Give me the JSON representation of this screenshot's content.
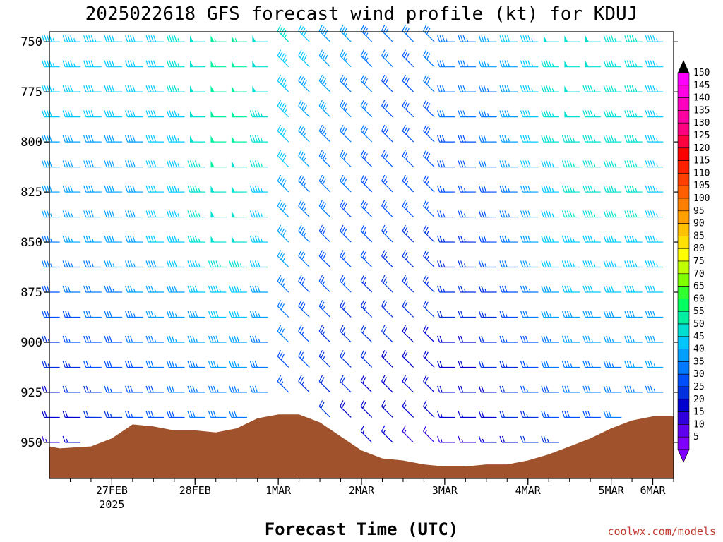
{
  "title": "2025022618 GFS forecast wind profile (kt) for KDUJ",
  "xlabel": "Forecast Time (UTC)",
  "credit": "coolwx.com/models",
  "chart_data": {
    "type": "wind_barbs",
    "y_axis": {
      "label": "",
      "ticks": [
        750,
        775,
        800,
        825,
        850,
        875,
        900,
        925,
        950
      ],
      "range": [
        745,
        968
      ],
      "inverted": true
    },
    "x_axis": {
      "start": "2025-02-26T18:00Z",
      "end": "2025-03-06T06:00Z",
      "ticks": [
        {
          "label": "27FEB",
          "label2": "2025"
        },
        {
          "label": "28FEB",
          "label2": ""
        },
        {
          "label": "1MAR",
          "label2": ""
        },
        {
          "label": "2MAR",
          "label2": ""
        },
        {
          "label": "3MAR",
          "label2": ""
        },
        {
          "label": "4MAR",
          "label2": ""
        },
        {
          "label": "5MAR",
          "label2": ""
        },
        {
          "label": "6MAR",
          "label2": ""
        }
      ]
    },
    "colorbar": {
      "levels": [
        5,
        10,
        15,
        20,
        25,
        30,
        35,
        40,
        45,
        50,
        55,
        60,
        65,
        70,
        75,
        80,
        85,
        90,
        95,
        100,
        105,
        110,
        115,
        120,
        125,
        130,
        135,
        140,
        145,
        150
      ],
      "colors": [
        "#8000ff",
        "#6000f0",
        "#3000e0",
        "#0000d0",
        "#0030e0",
        "#0050ff",
        "#0078ff",
        "#00a0ff",
        "#00c8ff",
        "#00e0d0",
        "#00f0a0",
        "#00ff60",
        "#30ff30",
        "#80ff00",
        "#c0ff00",
        "#ffff00",
        "#ffe000",
        "#ffc000",
        "#ffa000",
        "#ff8000",
        "#ff6000",
        "#ff4000",
        "#ff2000",
        "#ff0000",
        "#ff0040",
        "#ff0080",
        "#ff00a0",
        "#ff00c0",
        "#ff00e0",
        "#ff00ff"
      ]
    },
    "terrain_color": "#a0522d",
    "terrain_surface_pressure": [
      {
        "t": "2025-02-26T18:00Z",
        "p": 952
      },
      {
        "t": "2025-02-26T21:00Z",
        "p": 953
      },
      {
        "t": "2025-02-27T06:00Z",
        "p": 952
      },
      {
        "t": "2025-02-27T12:00Z",
        "p": 948
      },
      {
        "t": "2025-02-27T18:00Z",
        "p": 941
      },
      {
        "t": "2025-02-28T00:00Z",
        "p": 942
      },
      {
        "t": "2025-02-28T06:00Z",
        "p": 944
      },
      {
        "t": "2025-02-28T12:00Z",
        "p": 944
      },
      {
        "t": "2025-02-28T18:00Z",
        "p": 945
      },
      {
        "t": "2025-03-01T00:00Z",
        "p": 943
      },
      {
        "t": "2025-03-01T06:00Z",
        "p": 938
      },
      {
        "t": "2025-03-01T12:00Z",
        "p": 936
      },
      {
        "t": "2025-03-01T18:00Z",
        "p": 936
      },
      {
        "t": "2025-03-02T00:00Z",
        "p": 940
      },
      {
        "t": "2025-03-02T06:00Z",
        "p": 947
      },
      {
        "t": "2025-03-02T12:00Z",
        "p": 954
      },
      {
        "t": "2025-03-02T18:00Z",
        "p": 958
      },
      {
        "t": "2025-03-03T00:00Z",
        "p": 959
      },
      {
        "t": "2025-03-03T06:00Z",
        "p": 961
      },
      {
        "t": "2025-03-03T12:00Z",
        "p": 962
      },
      {
        "t": "2025-03-03T18:00Z",
        "p": 962
      },
      {
        "t": "2025-03-04T00:00Z",
        "p": 961
      },
      {
        "t": "2025-03-04T06:00Z",
        "p": 961
      },
      {
        "t": "2025-03-04T12:00Z",
        "p": 959
      },
      {
        "t": "2025-03-04T18:00Z",
        "p": 956
      },
      {
        "t": "2025-03-05T00:00Z",
        "p": 952
      },
      {
        "t": "2025-03-05T06:00Z",
        "p": 948
      },
      {
        "t": "2025-03-05T12:00Z",
        "p": 943
      },
      {
        "t": "2025-03-05T18:00Z",
        "p": 939
      },
      {
        "t": "2025-03-06T00:00Z",
        "p": 937
      },
      {
        "t": "2025-03-06T06:00Z",
        "p": 937
      }
    ],
    "wind_profile_by_day": [
      {
        "date": "27FEB",
        "low_kt": 15,
        "mid_kt": 35,
        "upper_kt": 45,
        "direction_from": "west"
      },
      {
        "date": "28FEB",
        "low_kt": 25,
        "mid_kt": 40,
        "upper_kt": 40,
        "direction_from": "west"
      },
      {
        "date": "1MAR",
        "low_kt": 30,
        "mid_kt": 50,
        "upper_kt": 55,
        "direction_from": "west"
      },
      {
        "date": "2MAR",
        "low_kt": 20,
        "mid_kt": 30,
        "upper_kt": 40,
        "direction_from": "northwest"
      },
      {
        "date": "3MAR",
        "low_kt": 15,
        "mid_kt": 25,
        "upper_kt": 30,
        "direction_from": "northwest"
      },
      {
        "date": "4MAR",
        "low_kt": 15,
        "mid_kt": 25,
        "upper_kt": 35,
        "direction_from": "west"
      },
      {
        "date": "5MAR",
        "low_kt": 25,
        "mid_kt": 45,
        "upper_kt": 50,
        "direction_from": "west"
      },
      {
        "date": "6MAR",
        "low_kt": 30,
        "mid_kt": 45,
        "upper_kt": 45,
        "direction_from": "west"
      }
    ]
  }
}
